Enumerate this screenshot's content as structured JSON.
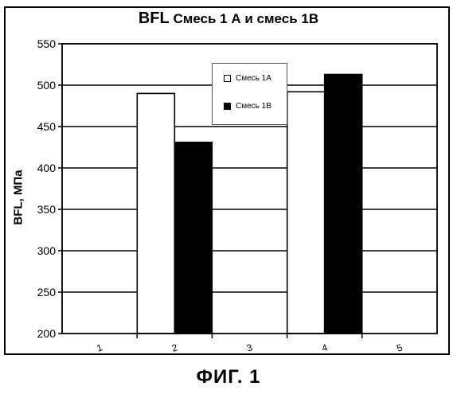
{
  "title": {
    "prefix": "BFL",
    "rest": "Смесь 1 А  и  смесь  1В"
  },
  "caption": "ФИГ. 1",
  "colors": {
    "series1": "#ffffff",
    "series2": "#000000"
  },
  "chart_data": {
    "type": "bar",
    "title": "BFL Смесь 1 А  и  смесь  1В",
    "xlabel": "",
    "ylabel": "BFL, МПа",
    "categories": [
      "1",
      "2",
      "3",
      "4",
      "5"
    ],
    "ylim": [
      200,
      550
    ],
    "yticks": [
      200,
      250,
      300,
      350,
      400,
      450,
      500,
      550
    ],
    "grid": true,
    "legend_position": "top-center",
    "series": [
      {
        "name": "Смесь  1А",
        "values": [
          null,
          490,
          null,
          492,
          null
        ]
      },
      {
        "name": "Смесь  1В",
        "values": [
          null,
          431,
          null,
          513,
          null
        ]
      }
    ]
  }
}
